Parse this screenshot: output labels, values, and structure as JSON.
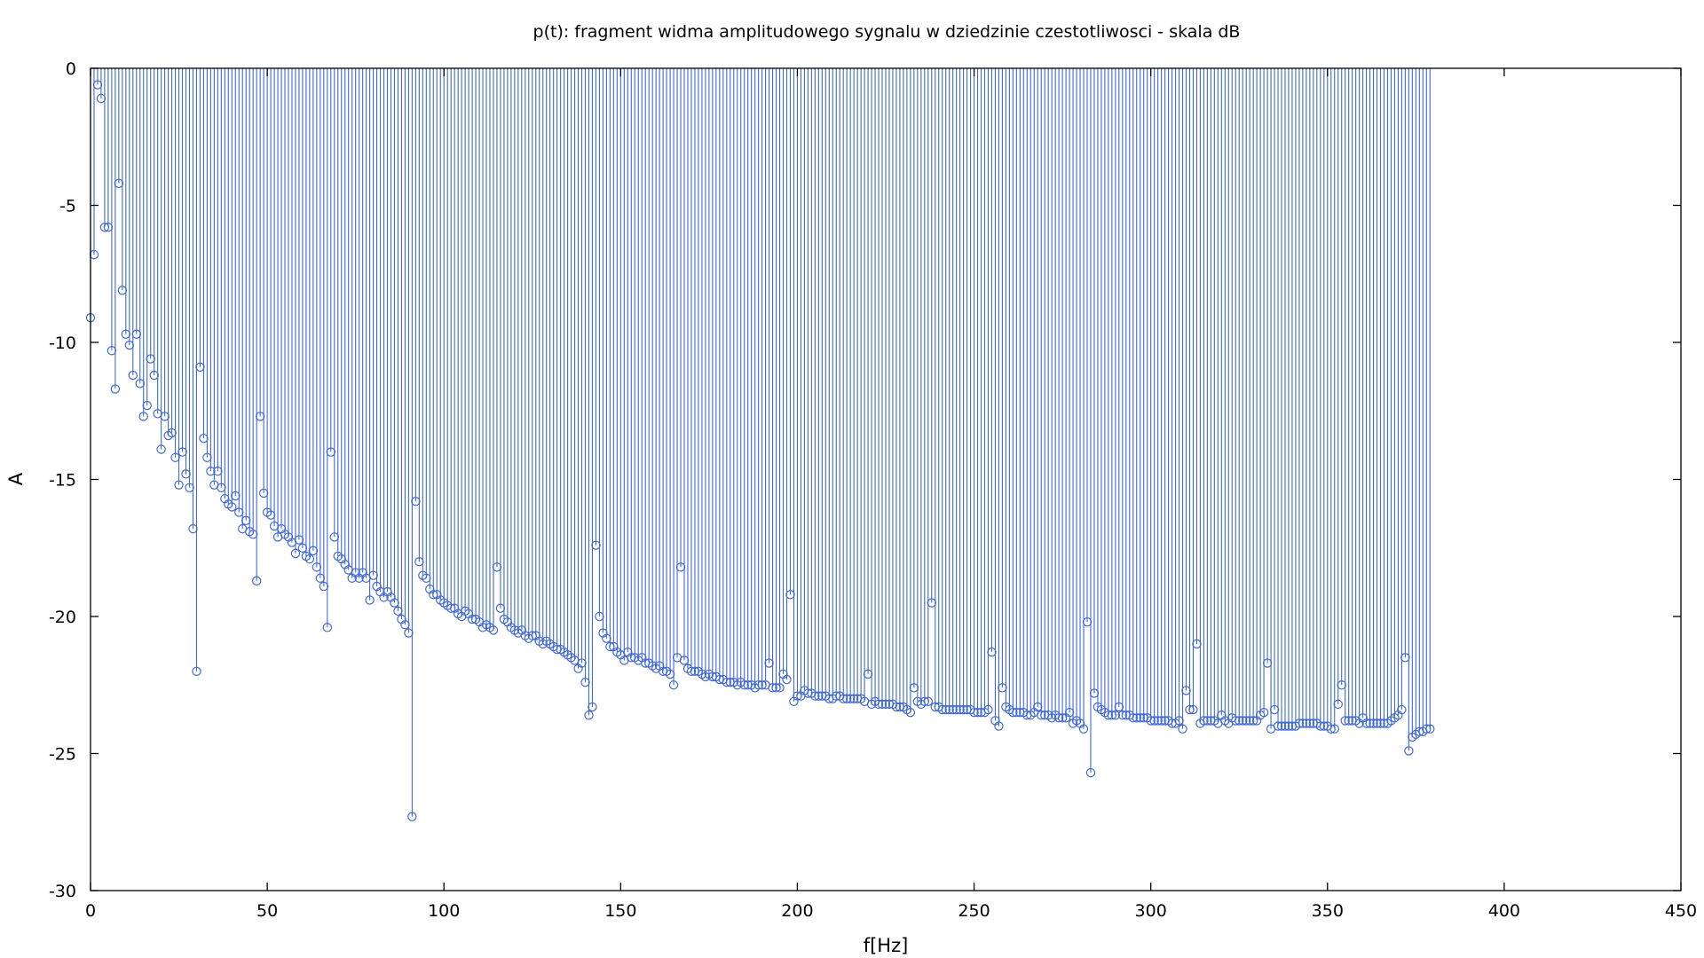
{
  "chart_data": {
    "type": "stem",
    "title": "p(t): fragment widma amplitudowego sygnalu w dziedzinie czestotliwosci - skala dB",
    "xlabel": "f[Hz]",
    "ylabel": "A",
    "xlim": [
      0,
      450
    ],
    "ylim": [
      -30,
      0
    ],
    "xticks": [
      0,
      50,
      100,
      150,
      200,
      250,
      300,
      350,
      400,
      450
    ],
    "yticks": [
      0,
      -5,
      -10,
      -15,
      -20,
      -25,
      -30
    ],
    "grid": false,
    "legend": "none",
    "baseline": 0,
    "series_color": "#4169d8",
    "x_start": 0,
    "x_step": 1,
    "values": [
      -9.1,
      -6.8,
      -0.6,
      -1.1,
      -5.8,
      -5.8,
      -10.3,
      -11.7,
      -4.2,
      -8.1,
      -9.7,
      -10.1,
      -11.2,
      -9.7,
      -11.5,
      -12.7,
      -12.3,
      -10.6,
      -11.2,
      -12.6,
      -13.9,
      -12.7,
      -13.4,
      -13.3,
      -14.2,
      -15.2,
      -14,
      -14.8,
      -15.3,
      -16.8,
      -22,
      -10.9,
      -13.5,
      -14.2,
      -14.7,
      -15.2,
      -14.7,
      -15.3,
      -15.7,
      -15.9,
      -16,
      -15.6,
      -16.2,
      -16.8,
      -16.5,
      -16.9,
      -17,
      -18.7,
      -12.7,
      -15.5,
      -16.2,
      -16.3,
      -16.7,
      -17.1,
      -16.8,
      -17,
      -17.1,
      -17.3,
      -17.7,
      -17.2,
      -17.5,
      -17.8,
      -17.9,
      -17.6,
      -18.2,
      -18.6,
      -18.9,
      -20.4,
      -14,
      -17.1,
      -17.8,
      -17.9,
      -18.1,
      -18.3,
      -18.6,
      -18.4,
      -18.6,
      -18.4,
      -18.6,
      -19.4,
      -18.5,
      -18.9,
      -19.1,
      -19.3,
      -19.1,
      -19.3,
      -19.5,
      -19.8,
      -20.1,
      -20.3,
      -20.6,
      -27.3,
      -15.8,
      -18,
      -18.5,
      -18.6,
      -19,
      -19.2,
      -19.2,
      -19.4,
      -19.5,
      -19.6,
      -19.7,
      -19.7,
      -19.9,
      -20,
      -19.8,
      -19.9,
      -20.1,
      -20.1,
      -20.2,
      -20.4,
      -20.3,
      -20.4,
      -20.5,
      -18.2,
      -19.7,
      -20.1,
      -20.2,
      -20.4,
      -20.5,
      -20.6,
      -20.5,
      -20.7,
      -20.8,
      -20.7,
      -20.7,
      -20.9,
      -21,
      -20.9,
      -21,
      -21.1,
      -21.2,
      -21.2,
      -21.3,
      -21.4,
      -21.5,
      -21.6,
      -21.9,
      -21.7,
      -22.4,
      -23.6,
      -23.3,
      -17.4,
      -20,
      -20.6,
      -20.8,
      -21.1,
      -21.1,
      -21.3,
      -21.4,
      -21.6,
      -21.3,
      -21.5,
      -21.5,
      -21.6,
      -21.5,
      -21.7,
      -21.7,
      -21.8,
      -21.9,
      -21.8,
      -22,
      -22,
      -22.1,
      -22.5,
      -21.5,
      -18.2,
      -21.6,
      -21.9,
      -22,
      -22,
      -22,
      -22.1,
      -22.2,
      -22.1,
      -22.2,
      -22.2,
      -22.3,
      -22.3,
      -22.4,
      -22.4,
      -22.4,
      -22.5,
      -22.4,
      -22.5,
      -22.5,
      -22.5,
      -22.6,
      -22.5,
      -22.5,
      -22.5,
      -21.7,
      -22.6,
      -22.6,
      -22.6,
      -22.1,
      -22.3,
      -19.2,
      -23.1,
      -22.9,
      -22.9,
      -22.7,
      -22.8,
      -22.8,
      -22.9,
      -22.9,
      -22.9,
      -22.9,
      -23,
      -23,
      -22.9,
      -22.9,
      -23,
      -23,
      -23,
      -23,
      -23,
      -23,
      -23.1,
      -22.1,
      -23.2,
      -23.1,
      -23.2,
      -23.2,
      -23.2,
      -23.2,
      -23.2,
      -23.3,
      -23.3,
      -23.3,
      -23.4,
      -23.5,
      -22.6,
      -23.1,
      -23.2,
      -23.1,
      -23.1,
      -19.5,
      -23.3,
      -23.3,
      -23.4,
      -23.4,
      -23.4,
      -23.4,
      -23.4,
      -23.4,
      -23.4,
      -23.4,
      -23.4,
      -23.5,
      -23.5,
      -23.5,
      -23.5,
      -23.4,
      -21.3,
      -23.8,
      -24,
      -22.6,
      -23.3,
      -23.4,
      -23.5,
      -23.5,
      -23.5,
      -23.5,
      -23.6,
      -23.6,
      -23.5,
      -23.3,
      -23.6,
      -23.6,
      -23.6,
      -23.7,
      -23.6,
      -23.7,
      -23.7,
      -23.7,
      -23.5,
      -23.9,
      -23.8,
      -23.9,
      -24.1,
      -20.2,
      -25.7,
      -22.8,
      -23.3,
      -23.4,
      -23.5,
      -23.6,
      -23.6,
      -23.6,
      -23.3,
      -23.6,
      -23.6,
      -23.6,
      -23.7,
      -23.7,
      -23.7,
      -23.7,
      -23.7,
      -23.8,
      -23.8,
      -23.8,
      -23.8,
      -23.8,
      -23.8,
      -23.9,
      -23.9,
      -23.8,
      -24.1,
      -22.7,
      -23.4,
      -23.4,
      -21,
      -23.9,
      -23.8,
      -23.8,
      -23.8,
      -23.8,
      -23.9,
      -23.6,
      -23.8,
      -23.9,
      -23.7,
      -23.8,
      -23.8,
      -23.8,
      -23.8,
      -23.8,
      -23.8,
      -23.8,
      -23.6,
      -23.5,
      -21.7,
      -24.1,
      -23.4,
      -24,
      -24,
      -24,
      -24,
      -24,
      -24,
      -23.9,
      -23.9,
      -23.9,
      -23.9,
      -23.9,
      -23.9,
      -24,
      -24,
      -24,
      -24.1,
      -24.1,
      -23.2,
      -22.5,
      -23.8,
      -23.8,
      -23.8,
      -23.8,
      -23.9,
      -23.7,
      -23.9,
      -23.9,
      -23.9,
      -23.9,
      -23.9,
      -23.9,
      -23.9,
      -23.8,
      -23.7,
      -23.6,
      -23.4,
      -21.5,
      -24.9,
      -24.4,
      -24.3,
      -24.2,
      -24.2,
      -24.1,
      -24.1
    ]
  }
}
